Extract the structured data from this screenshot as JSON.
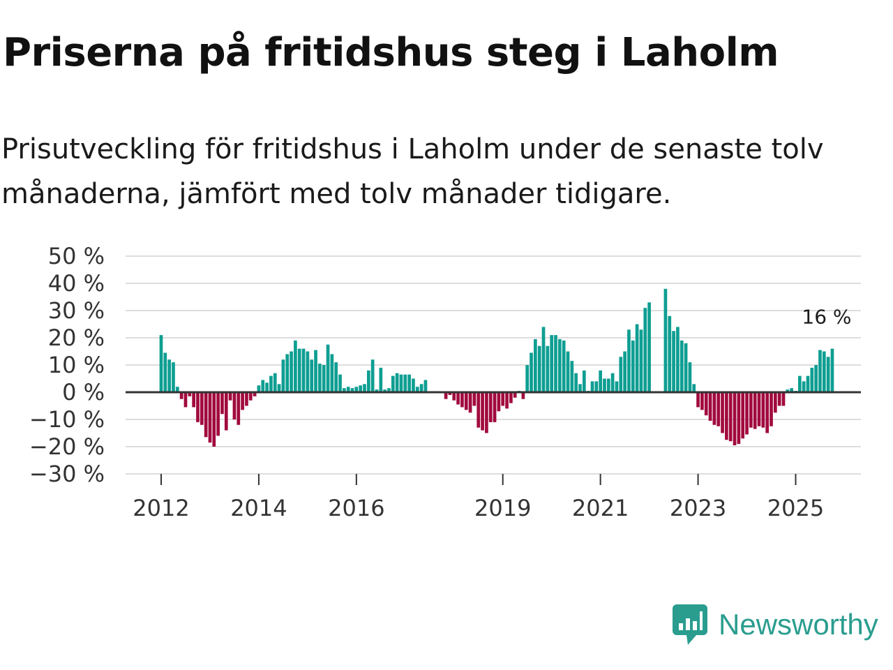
{
  "title": "Priserna på fritidshus steg i Laholm",
  "subtitle": "Prisutveckling för fritidshus i Laholm under de senaste tolv månaderna, jämfört med tolv månader tidigare.",
  "brand": {
    "name": "Newsworthy",
    "icon": "newsworthy-logo-icon",
    "color": "#2a9d8f"
  },
  "colors": {
    "positive": "#0e9e92",
    "negative": "#a10a3e",
    "grid": "#dddddd",
    "zero": "#333333"
  },
  "chart_data": {
    "type": "bar",
    "title": "Priserna på fritidshus steg i Laholm",
    "ylabel": "",
    "xlabel": "",
    "ylim": [
      -30,
      50
    ],
    "yticks": [
      50,
      40,
      30,
      20,
      10,
      0,
      -10,
      -20,
      -30
    ],
    "ytick_labels": [
      "50 %",
      "40 %",
      "30 %",
      "20 %",
      "10 %",
      "0 %",
      "−10 %",
      "−20 %",
      "−30 %"
    ],
    "xticks": [
      {
        "label": "2012",
        "index": 0
      },
      {
        "label": "2014",
        "index": 24
      },
      {
        "label": "2016",
        "index": 48
      },
      {
        "label": "2019",
        "index": 84
      },
      {
        "label": "2021",
        "index": 108
      },
      {
        "label": "2023",
        "index": 132
      },
      {
        "label": "2025",
        "index": 156
      }
    ],
    "period": "monthly, Jan 2012 – Oct 2025",
    "annotation": {
      "label": "16 %",
      "index": 165
    },
    "values": [
      21,
      14.5,
      12,
      11,
      2,
      -2.5,
      -5.5,
      -1.5,
      -5.5,
      -11,
      -12,
      -16.5,
      -18.5,
      -20,
      -16,
      -8,
      -14,
      -3,
      -10,
      -12,
      -6.5,
      -5,
      -3,
      -1.5,
      2.5,
      4.5,
      3.5,
      6,
      7,
      3,
      12,
      14,
      15,
      19,
      16,
      16,
      15,
      12,
      15.5,
      10.5,
      10,
      17.5,
      14,
      11,
      6.5,
      1.5,
      2,
      1.5,
      2,
      2.5,
      3,
      8,
      12,
      1,
      9,
      1,
      1.5,
      6,
      7,
      6.5,
      6.5,
      6.5,
      5,
      2,
      3,
      4.5,
      null,
      null,
      null,
      null,
      -2.5,
      -1,
      -3,
      -4.5,
      -5.5,
      -6.5,
      -7.5,
      -5,
      -13,
      -14,
      -15,
      -11,
      -11,
      -7,
      -5,
      -6,
      -4,
      -2,
      0.5,
      -2.5,
      10,
      14.5,
      19.5,
      17,
      24,
      17,
      21,
      21,
      19.5,
      19,
      15,
      11.5,
      7,
      3,
      8,
      0.5,
      4,
      4,
      8,
      5,
      5,
      7,
      4,
      13,
      15,
      23,
      19,
      25,
      23,
      31,
      33,
      null,
      null,
      null,
      38,
      28,
      22.5,
      24,
      19,
      18,
      11,
      3,
      -5.5,
      -6.5,
      -8.5,
      -10.5,
      -12,
      -12.5,
      -15,
      -17.5,
      -18,
      -19.5,
      -19,
      -17,
      -15.5,
      -13,
      -13.5,
      -12.5,
      -13,
      -15,
      -12.5,
      -7.5,
      -5,
      -5,
      1,
      1.5,
      0.5,
      6,
      4,
      6,
      9,
      10,
      15.5,
      15,
      13,
      16
    ]
  }
}
